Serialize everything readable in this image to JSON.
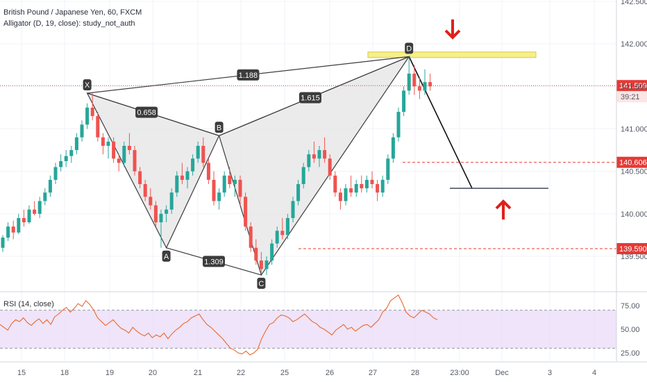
{
  "header": {
    "symbol_line": "British Pound / Japanese Yen, 60, FXCM",
    "indicator_line": "Alligator (D, 19, close): study_not_auth"
  },
  "rsi": {
    "title": "RSI (14, close)",
    "ticks": [
      "75.00",
      "50.00",
      "25.00"
    ],
    "overbought": 70,
    "oversold": 30,
    "band_color": "#e8d9f7",
    "line_color": "#e8692f",
    "values": [
      55,
      52,
      49,
      56,
      60,
      58,
      62,
      57,
      54,
      58,
      61,
      56,
      60,
      55,
      63,
      66,
      70,
      73,
      68,
      72,
      77,
      74,
      80,
      76,
      70,
      62,
      58,
      54,
      57,
      60,
      55,
      51,
      49,
      46,
      52,
      48,
      45,
      43,
      46,
      41,
      44,
      42,
      46,
      40,
      45,
      49,
      52,
      56,
      58,
      62,
      64,
      66,
      60,
      55,
      52,
      48,
      44,
      40,
      35,
      30,
      28,
      25,
      24,
      27,
      23,
      25,
      29,
      40,
      48,
      55,
      57,
      62,
      65,
      64,
      62,
      58,
      60,
      63,
      66,
      62,
      58,
      56,
      52,
      50,
      47,
      44,
      49,
      52,
      55,
      50,
      52,
      48,
      51,
      54,
      55,
      52,
      56,
      60,
      68,
      72,
      80,
      83,
      86,
      78,
      68,
      64,
      62,
      66,
      70,
      68,
      66,
      62,
      60
    ],
    "bands": [
      "70",
      "30"
    ]
  },
  "chart_data": {
    "type": "candlestick",
    "title": "British Pound / Japanese Yen, 60, FXCM",
    "ylim": [
      139.2,
      142.5
    ],
    "y_ticks": [
      "142.500",
      "142.000",
      "141.500",
      "141.000",
      "140.500",
      "140.000",
      "139.500"
    ],
    "x_ticks": [
      "15",
      "18",
      "19",
      "20",
      "21",
      "22",
      "25",
      "26",
      "27",
      "28",
      "23:00",
      "Dec",
      "3",
      "4"
    ],
    "candles": [
      [
        139.6,
        139.75,
        139.55,
        139.72
      ],
      [
        139.72,
        139.9,
        139.68,
        139.85
      ],
      [
        139.85,
        139.92,
        139.7,
        139.78
      ],
      [
        139.78,
        140.0,
        139.76,
        139.95
      ],
      [
        139.95,
        140.05,
        139.85,
        139.9
      ],
      [
        139.9,
        140.1,
        139.88,
        140.05
      ],
      [
        140.05,
        140.15,
        139.98,
        140.0
      ],
      [
        140.0,
        140.2,
        139.95,
        140.15
      ],
      [
        140.15,
        140.3,
        140.1,
        140.25
      ],
      [
        140.25,
        140.45,
        140.2,
        140.4
      ],
      [
        140.4,
        140.6,
        140.35,
        140.55
      ],
      [
        140.55,
        140.7,
        140.5,
        140.62
      ],
      [
        140.62,
        140.75,
        140.55,
        140.68
      ],
      [
        140.68,
        140.8,
        140.6,
        140.75
      ],
      [
        140.75,
        140.95,
        140.7,
        140.9
      ],
      [
        140.9,
        141.1,
        140.85,
        141.05
      ],
      [
        141.05,
        141.3,
        141.0,
        141.25
      ],
      [
        141.25,
        141.42,
        141.1,
        141.15
      ],
      [
        141.15,
        141.2,
        140.85,
        140.9
      ],
      [
        140.9,
        140.95,
        140.7,
        140.8
      ],
      [
        140.8,
        140.9,
        140.65,
        140.85
      ],
      [
        140.85,
        140.9,
        140.6,
        140.65
      ],
      [
        140.65,
        140.7,
        140.5,
        140.6
      ],
      [
        140.6,
        140.85,
        140.55,
        140.8
      ],
      [
        140.8,
        140.95,
        140.7,
        140.75
      ],
      [
        140.75,
        140.8,
        140.45,
        140.5
      ],
      [
        140.5,
        140.55,
        140.3,
        140.35
      ],
      [
        140.35,
        140.4,
        140.15,
        140.2
      ],
      [
        140.2,
        140.3,
        140.05,
        140.1
      ],
      [
        140.1,
        140.15,
        139.85,
        139.9
      ],
      [
        139.9,
        140.05,
        139.6,
        140.0
      ],
      [
        140.0,
        140.1,
        139.9,
        140.05
      ],
      [
        140.05,
        140.3,
        140.0,
        140.25
      ],
      [
        140.25,
        140.5,
        140.2,
        140.45
      ],
      [
        140.45,
        140.6,
        140.35,
        140.4
      ],
      [
        140.4,
        140.55,
        140.3,
        140.5
      ],
      [
        140.5,
        140.7,
        140.45,
        140.65
      ],
      [
        140.65,
        140.85,
        140.6,
        140.8
      ],
      [
        140.8,
        140.9,
        140.55,
        140.6
      ],
      [
        140.6,
        140.65,
        140.35,
        140.4
      ],
      [
        140.4,
        140.5,
        140.1,
        140.15
      ],
      [
        140.15,
        140.3,
        140.05,
        140.25
      ],
      [
        140.25,
        140.5,
        140.2,
        140.45
      ],
      [
        140.45,
        140.55,
        140.3,
        140.35
      ],
      [
        140.35,
        140.45,
        140.2,
        140.4
      ],
      [
        140.4,
        140.45,
        140.1,
        140.2
      ],
      [
        140.2,
        140.25,
        139.8,
        139.85
      ],
      [
        139.85,
        139.9,
        139.55,
        139.6
      ],
      [
        139.6,
        139.7,
        139.4,
        139.45
      ],
      [
        139.45,
        139.55,
        139.3,
        139.35
      ],
      [
        139.35,
        139.5,
        139.28,
        139.45
      ],
      [
        139.45,
        139.7,
        139.4,
        139.65
      ],
      [
        139.65,
        139.85,
        139.6,
        139.8
      ],
      [
        139.8,
        139.95,
        139.7,
        139.75
      ],
      [
        139.75,
        140.0,
        139.7,
        139.95
      ],
      [
        139.95,
        140.2,
        139.9,
        140.15
      ],
      [
        140.15,
        140.4,
        140.1,
        140.35
      ],
      [
        140.35,
        140.6,
        140.3,
        140.55
      ],
      [
        140.55,
        140.75,
        140.5,
        140.7
      ],
      [
        140.7,
        140.85,
        140.6,
        140.65
      ],
      [
        140.65,
        140.8,
        140.55,
        140.75
      ],
      [
        140.75,
        140.9,
        140.6,
        140.65
      ],
      [
        140.65,
        140.7,
        140.4,
        140.45
      ],
      [
        140.45,
        140.5,
        140.2,
        140.25
      ],
      [
        140.25,
        140.3,
        140.05,
        140.15
      ],
      [
        140.15,
        140.35,
        140.1,
        140.3
      ],
      [
        140.3,
        140.45,
        140.2,
        140.25
      ],
      [
        140.25,
        140.4,
        140.2,
        140.35
      ],
      [
        140.35,
        140.45,
        140.25,
        140.3
      ],
      [
        140.3,
        140.45,
        140.25,
        140.4
      ],
      [
        140.4,
        140.5,
        140.3,
        140.35
      ],
      [
        140.35,
        140.4,
        140.15,
        140.25
      ],
      [
        140.25,
        140.45,
        140.2,
        140.4
      ],
      [
        140.4,
        140.7,
        140.35,
        140.65
      ],
      [
        140.65,
        140.95,
        140.6,
        140.9
      ],
      [
        140.9,
        141.25,
        140.85,
        141.2
      ],
      [
        141.2,
        141.5,
        141.15,
        141.45
      ],
      [
        141.45,
        141.85,
        141.4,
        141.65
      ],
      [
        141.65,
        141.75,
        141.4,
        141.5
      ],
      [
        141.5,
        141.6,
        141.35,
        141.45
      ],
      [
        141.45,
        141.7,
        141.4,
        141.55
      ],
      [
        141.55,
        141.65,
        141.45,
        141.5
      ]
    ],
    "price_lines": [
      {
        "value": 141.509,
        "label": "141.509",
        "style": "dotted",
        "color": "#e53935",
        "countdown": "39:21"
      },
      {
        "value": 140.606,
        "label": "140.606",
        "style": "dashed",
        "color": "#e53935"
      },
      {
        "value": 139.59,
        "label": "139.590",
        "style": "dashed",
        "color": "#e53935"
      }
    ],
    "pattern": {
      "points": [
        {
          "name": "X",
          "candle": 16,
          "price": 141.42
        },
        {
          "name": "A",
          "candle": 31,
          "price": 139.6
        },
        {
          "name": "B",
          "candle": 41,
          "price": 140.92
        },
        {
          "name": "C",
          "candle": 49,
          "price": 139.28
        },
        {
          "name": "D",
          "candle": 77,
          "price": 141.85
        }
      ],
      "ratios": [
        {
          "label": "0.658",
          "between": [
            "X",
            "B"
          ]
        },
        {
          "label": "1.309",
          "between": [
            "A",
            "C"
          ]
        },
        {
          "label": "1.615",
          "between": [
            "B",
            "D"
          ]
        },
        {
          "label": "1.188",
          "between": [
            "X",
            "D"
          ]
        }
      ],
      "projection": {
        "from_price": 141.85,
        "to_price": 140.3
      },
      "zone": {
        "price_top": 141.88,
        "price_bottom": 141.82,
        "color": "#f7ef8a"
      }
    },
    "arrows": [
      {
        "direction": "down",
        "color": "#e0201b"
      },
      {
        "direction": "up",
        "color": "#e0201b"
      }
    ],
    "colors": {
      "up": "#26a69a",
      "down": "#ef5350",
      "pattern_fill": "#e6e6e6",
      "pattern_line": "#3c3c3c"
    }
  }
}
